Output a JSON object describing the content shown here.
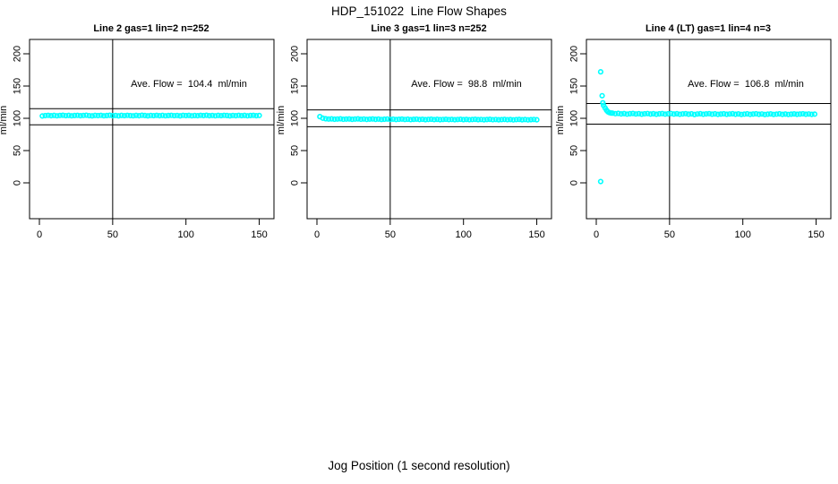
{
  "header": {
    "title": "HDP_151022  Line Flow Shapes"
  },
  "footer": {
    "xlabel": "Jog Position (1 second resolution)"
  },
  "colors": {
    "point": "#00FFFF",
    "axis": "#000000",
    "background": "#ffffff"
  },
  "chart_data": {
    "type": "scatter",
    "layout": "3 panels in one row",
    "title": "HDP_151022  Line Flow Shapes",
    "xlabel": "Jog Position (1 second resolution)",
    "ylabel": "ml/min",
    "x_ticks": [
      0,
      50,
      100,
      150
    ],
    "y_ticks": [
      0,
      50,
      100,
      150,
      200
    ],
    "xlim": [
      -7,
      160
    ],
    "ylim": [
      -55,
      222
    ],
    "vline_x": 50,
    "grid": false,
    "legend": "none",
    "point_color": "#00FFFF",
    "panels": [
      {
        "title": "Line 2 gas=1 lin=2 n=252",
        "annotation": "Ave. Flow =  104.4  ml/min",
        "ave_flow": 104.4,
        "n": 252,
        "ref_upper": 115,
        "ref_lower": 90,
        "points_start_x": 2,
        "points_dx": 2,
        "points_y": [
          103.6,
          104.2,
          104.6,
          104.0,
          104.5,
          103.9,
          104.4,
          104.7,
          104.1,
          104.5,
          103.9,
          104.3,
          104.6,
          104.0,
          104.4,
          104.8,
          104.1,
          103.8,
          104.5,
          104.2,
          104.6,
          103.9,
          104.3,
          104.7,
          104.0,
          104.4,
          103.8,
          104.5,
          104.1,
          104.6,
          104.2,
          103.9,
          104.5,
          104.0,
          104.7,
          104.3,
          103.8,
          104.4,
          104.1,
          104.6,
          104.0,
          104.5,
          103.9,
          104.3,
          104.6,
          104.1,
          104.4,
          103.8,
          104.6,
          104.2,
          104.5,
          103.9,
          104.3,
          104.0,
          104.6,
          104.2,
          104.7,
          104.0,
          104.4,
          103.9,
          104.5,
          104.1,
          104.6,
          104.3,
          103.8,
          104.4,
          104.0,
          104.6,
          104.1,
          104.5,
          103.9,
          104.3,
          104.6,
          104.0,
          104.4
        ],
        "extra_points": []
      },
      {
        "title": "Line 3 gas=1 lin=3 n=252",
        "annotation": "Ave. Flow =  98.8  ml/min",
        "ave_flow": 98.8,
        "n": 252,
        "ref_upper": 113,
        "ref_lower": 87,
        "points_start_x": 2,
        "points_dx": 2,
        "points_y": [
          102.6,
          100.2,
          99.3,
          98.9,
          99.1,
          98.6,
          98.9,
          99.2,
          98.5,
          98.8,
          99.0,
          98.4,
          98.8,
          99.1,
          98.5,
          98.9,
          98.3,
          98.7,
          99.0,
          98.4,
          98.8,
          98.2,
          98.6,
          98.9,
          98.3,
          98.7,
          98.1,
          98.5,
          98.8,
          98.2,
          98.6,
          98.0,
          98.4,
          98.7,
          98.1,
          98.5,
          97.9,
          98.3,
          98.6,
          98.0,
          98.4,
          97.9,
          98.2,
          98.5,
          98.0,
          98.3,
          97.8,
          98.2,
          98.5,
          97.9,
          98.3,
          97.8,
          98.1,
          98.4,
          97.9,
          98.2,
          97.7,
          98.1,
          98.4,
          97.8,
          98.2,
          97.7,
          98.0,
          98.3,
          97.8,
          98.1,
          97.6,
          98.0,
          98.3,
          97.7,
          98.1,
          97.6,
          97.9,
          98.2,
          97.7
        ],
        "extra_points": []
      },
      {
        "title": "Line 4 (LT) gas=1 lin=4 n=3",
        "annotation": "Ave. Flow =  106.8  ml/min",
        "ave_flow": 106.8,
        "n": 3,
        "ref_upper": 123,
        "ref_lower": 91,
        "points_start_x": 11,
        "points_dx": 2,
        "points_y": [
          108.0,
          107.2,
          107.6,
          106.8,
          107.3,
          106.5,
          107.1,
          107.5,
          106.7,
          107.2,
          106.4,
          107.0,
          107.4,
          106.6,
          107.1,
          106.3,
          106.9,
          107.3,
          106.5,
          107.0,
          107.4,
          106.6,
          107.1,
          106.3,
          106.8,
          107.2,
          106.4,
          106.9,
          105.9,
          106.7,
          107.1,
          106.3,
          106.8,
          107.2,
          106.4,
          106.9,
          106.1,
          106.6,
          107.0,
          106.2,
          106.7,
          107.1,
          106.3,
          106.8,
          106.0,
          106.5,
          106.9,
          106.1,
          106.6,
          107.0,
          106.2,
          106.7,
          105.9,
          106.4,
          106.8,
          106.0,
          106.5,
          106.9,
          106.1,
          106.6,
          106.0,
          106.4,
          106.8,
          106.2,
          106.6,
          107.0,
          106.3,
          106.7,
          106.1,
          106.5
        ],
        "extra_points": [
          [
            3,
            172
          ],
          [
            3,
            2
          ],
          [
            4,
            135
          ],
          [
            4.5,
            124
          ],
          [
            5,
            120
          ],
          [
            6,
            116
          ],
          [
            7,
            112.5
          ],
          [
            8,
            110
          ],
          [
            9,
            108.8
          ],
          [
            10,
            108.2
          ]
        ]
      }
    ]
  }
}
